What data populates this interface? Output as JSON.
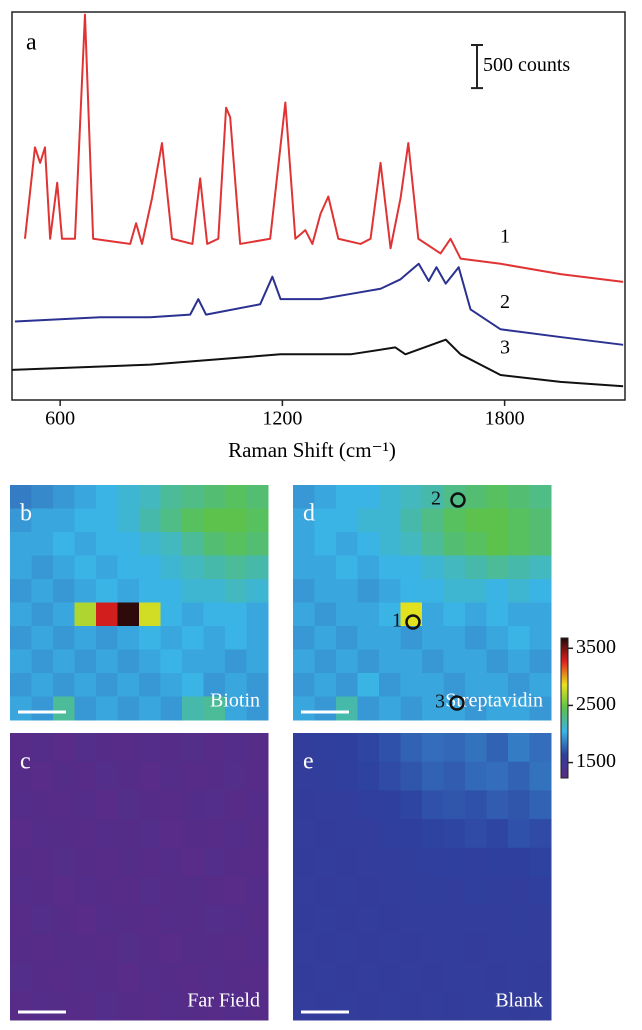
{
  "chart_data": [
    {
      "type": "line",
      "panel_label": "a",
      "xlabel": "Raman Shift (cm⁻¹)",
      "xlim": [
        470,
        2125
      ],
      "ylim": [
        0,
        4500
      ],
      "xticks": [
        600,
        1200,
        1800
      ],
      "scale_bar": {
        "value": 500,
        "label": "500 counts"
      },
      "series": [
        {
          "name": "1",
          "color": "#e03434",
          "x": [
            505,
            532,
            546,
            559,
            573,
            592,
            605,
            640,
            667,
            689,
            789,
            805,
            821,
            848,
            875,
            902,
            957,
            978,
            997,
            1027,
            1048,
            1059,
            1086,
            1167,
            1208,
            1235,
            1262,
            1281,
            1303,
            1324,
            1351,
            1411,
            1438,
            1465,
            1492,
            1519,
            1540,
            1567,
            1627,
            1654,
            1681,
            1789,
            1951,
            2120
          ],
          "values": [
            1870,
            2930,
            2750,
            2930,
            1870,
            2520,
            1870,
            1870,
            4470,
            1870,
            1810,
            2050,
            1810,
            2340,
            2980,
            1870,
            1810,
            2570,
            1810,
            1870,
            3390,
            3280,
            1810,
            1870,
            3450,
            1870,
            1970,
            1810,
            2160,
            2360,
            1870,
            1810,
            1870,
            2750,
            1760,
            2340,
            2980,
            1870,
            1700,
            1870,
            1640,
            1580,
            1460,
            1370
          ]
        },
        {
          "name": "2",
          "color": "#2b3190",
          "x": [
            478,
            708,
            843,
            951,
            973,
            994,
            1140,
            1173,
            1195,
            1303,
            1384,
            1465,
            1519,
            1568,
            1595,
            1616,
            1641,
            1676,
            1708,
            1789,
            1951,
            2120
          ],
          "values": [
            910,
            960,
            960,
            990,
            1170,
            990,
            1110,
            1430,
            1170,
            1170,
            1230,
            1290,
            1400,
            1580,
            1380,
            1540,
            1350,
            1540,
            1050,
            820,
            730,
            640
          ]
        },
        {
          "name": "3",
          "color": "#111111",
          "x": [
            470,
            843,
            1195,
            1384,
            1505,
            1532,
            1641,
            1681,
            1789,
            1951,
            2120
          ],
          "values": [
            350,
            410,
            530,
            530,
            610,
            530,
            700,
            530,
            290,
            210,
            160
          ]
        }
      ]
    },
    {
      "type": "heatmap",
      "zlim": [
        1230,
        3680
      ],
      "zticks": [
        1500,
        2500,
        3500
      ],
      "colormap": [
        "#5b2a86",
        "#2e3f9e",
        "#3ab4e6",
        "#5cc24a",
        "#e6e21e",
        "#e02020",
        "#200808"
      ],
      "annotations": [
        "1",
        "2",
        "3"
      ],
      "panels": [
        {
          "label": "b",
          "name": "Biotin",
          "values": [
            [
              1850,
              1900,
              1950,
              2000,
              2050,
              2100,
              2150,
              2250,
              2300,
              2350,
              2400,
              2350
            ],
            [
              1950,
              2000,
              2000,
              2050,
              2050,
              2100,
              2200,
              2300,
              2400,
              2450,
              2450,
              2400
            ],
            [
              2000,
              2000,
              2050,
              2000,
              2050,
              2050,
              2100,
              2150,
              2250,
              2350,
              2400,
              2350
            ],
            [
              2000,
              1950,
              2000,
              2050,
              2000,
              2050,
              2050,
              2100,
              2150,
              2200,
              2250,
              2200
            ],
            [
              1950,
              2000,
              1950,
              2000,
              2050,
              2000,
              2050,
              2050,
              2100,
              2100,
              2150,
              2100
            ],
            [
              2000,
              1950,
              2000,
              2700,
              3300,
              3650,
              2800,
              2050,
              2000,
              2050,
              2050,
              2000
            ],
            [
              1950,
              2000,
              1950,
              2000,
              1950,
              2000,
              2050,
              2000,
              2050,
              2000,
              2050,
              2000
            ],
            [
              2000,
              1950,
              2000,
              1950,
              2000,
              1950,
              2000,
              2050,
              2000,
              2000,
              1950,
              2000
            ],
            [
              1950,
              2000,
              1950,
              2000,
              1950,
              2000,
              1950,
              2000,
              2050,
              1950,
              2000,
              1950
            ],
            [
              2000,
              1950,
              2250,
              1950,
              2000,
              1950,
              2000,
              1950,
              2200,
              2250,
              2000,
              1950
            ]
          ]
        },
        {
          "label": "d",
          "name": "Streptavidin",
          "values": [
            [
              1950,
              2000,
              2050,
              2050,
              2100,
              2150,
              2200,
              2300,
              2350,
              2400,
              2350,
              2300
            ],
            [
              2000,
              2050,
              2050,
              2100,
              2100,
              2200,
              2300,
              2400,
              2450,
              2450,
              2400,
              2350
            ],
            [
              2000,
              2050,
              2000,
              2050,
              2100,
              2150,
              2250,
              2350,
              2400,
              2450,
              2400,
              2350
            ],
            [
              2000,
              2000,
              2050,
              2000,
              2050,
              2050,
              2100,
              2150,
              2200,
              2250,
              2200,
              2150
            ],
            [
              1950,
              2000,
              2000,
              1950,
              2000,
              2050,
              2050,
              2100,
              2100,
              2050,
              2100,
              2050
            ],
            [
              2000,
              1950,
              2000,
              2000,
              2050,
              2850,
              2000,
              2050,
              2000,
              2050,
              2000,
              2000
            ],
            [
              1950,
              2000,
              1950,
              2000,
              2000,
              1950,
              2000,
              2000,
              1950,
              2000,
              2050,
              2000
            ],
            [
              2000,
              1950,
              2000,
              1950,
              2000,
              2000,
              1950,
              2000,
              2000,
              1950,
              2000,
              1950
            ],
            [
              1950,
              2000,
              1950,
              2050,
              1950,
              2000,
              2000,
              1950,
              2000,
              2000,
              1950,
              2000
            ],
            [
              2000,
              1950,
              2200,
              1950,
              2000,
              1950,
              2000,
              2000,
              1950,
              2000,
              2000,
              1950
            ]
          ]
        },
        {
          "label": "c",
          "name": "Far Field",
          "values": [
            [
              1270,
              1290,
              1260,
              1300,
              1280,
              1270,
              1290,
              1280,
              1300,
              1270,
              1290,
              1280
            ],
            [
              1280,
              1260,
              1290,
              1270,
              1300,
              1280,
              1260,
              1290,
              1270,
              1280,
              1300,
              1270
            ],
            [
              1290,
              1280,
              1270,
              1290,
              1260,
              1300,
              1280,
              1270,
              1290,
              1300,
              1270,
              1290
            ],
            [
              1260,
              1290,
              1280,
              1270,
              1290,
              1280,
              1300,
              1260,
              1280,
              1270,
              1290,
              1280
            ],
            [
              1280,
              1270,
              1300,
              1280,
              1270,
              1290,
              1270,
              1290,
              1260,
              1300,
              1280,
              1270
            ],
            [
              1290,
              1280,
              1260,
              1290,
              1280,
              1270,
              1300,
              1280,
              1290,
              1270,
              1260,
              1290
            ],
            [
              1270,
              1300,
              1280,
              1260,
              1290,
              1280,
              1270,
              1290,
              1280,
              1300,
              1290,
              1280
            ],
            [
              1280,
              1270,
              1290,
              1280,
              1270,
              1300,
              1280,
              1260,
              1290,
              1280,
              1270,
              1290
            ],
            [
              1300,
              1280,
              1270,
              1290,
              1280,
              1260,
              1290,
              1280,
              1270,
              1290,
              1280,
              1270
            ],
            [
              1270,
              1290,
              1280,
              1270,
              1300,
              1280,
              1270,
              1290,
              1280,
              1270,
              1290,
              1280
            ]
          ]
        },
        {
          "label": "e",
          "name": "Blank",
          "values": [
            [
              1600,
              1620,
              1640,
              1660,
              1700,
              1760,
              1800,
              1780,
              1820,
              1760,
              1850,
              1800
            ],
            [
              1590,
              1610,
              1620,
              1650,
              1680,
              1720,
              1760,
              1740,
              1790,
              1800,
              1760,
              1820
            ],
            [
              1580,
              1600,
              1600,
              1620,
              1640,
              1660,
              1700,
              1720,
              1700,
              1740,
              1720,
              1760
            ],
            [
              1590,
              1580,
              1600,
              1600,
              1620,
              1630,
              1650,
              1660,
              1680,
              1660,
              1700,
              1680
            ],
            [
              1580,
              1590,
              1580,
              1600,
              1600,
              1610,
              1620,
              1630,
              1620,
              1640,
              1630,
              1650
            ],
            [
              1590,
              1580,
              1590,
              1580,
              1600,
              1590,
              1610,
              1600,
              1620,
              1610,
              1600,
              1620
            ],
            [
              1580,
              1590,
              1580,
              1590,
              1580,
              1600,
              1590,
              1600,
              1590,
              1600,
              1610,
              1590
            ],
            [
              1590,
              1580,
              1590,
              1580,
              1590,
              1580,
              1600,
              1590,
              1580,
              1600,
              1590,
              1600
            ],
            [
              1580,
              1590,
              1580,
              1590,
              1580,
              1590,
              1580,
              1590,
              1600,
              1580,
              1590,
              1580
            ],
            [
              1590,
              1580,
              1590,
              1580,
              1590,
              1580,
              1590,
              1580,
              1590,
              1590,
              1580,
              1590
            ]
          ]
        }
      ]
    }
  ]
}
